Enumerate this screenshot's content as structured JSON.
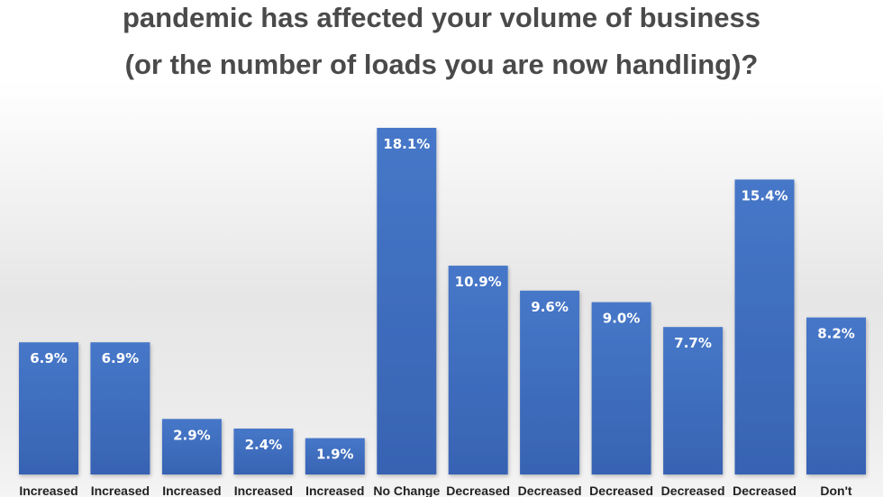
{
  "chart_data": {
    "type": "bar",
    "title_lines": [
      "pandemic has affected your volume of business",
      "(or the number of loads you are now handling)?"
    ],
    "categories": [
      "Increased",
      "Increased",
      "Increased",
      "Increased",
      "Increased",
      "No Change",
      "Decreased",
      "Decreased",
      "Decreased",
      "Decreased",
      "Decreased",
      "Don't"
    ],
    "values": [
      6.9,
      6.9,
      2.9,
      2.4,
      1.9,
      18.1,
      10.9,
      9.6,
      9.0,
      7.7,
      15.4,
      8.2
    ],
    "value_labels": [
      "6.9%",
      "6.9%",
      "2.9%",
      "2.4%",
      "1.9%",
      "18.1%",
      "10.9%",
      "9.6%",
      "9.0%",
      "7.7%",
      "15.4%",
      "8.2%"
    ],
    "ylim": [
      0,
      18.1
    ],
    "grid": false,
    "bar_color": "#3f6fc1",
    "bar_color_dark": "#2f5aa8"
  }
}
